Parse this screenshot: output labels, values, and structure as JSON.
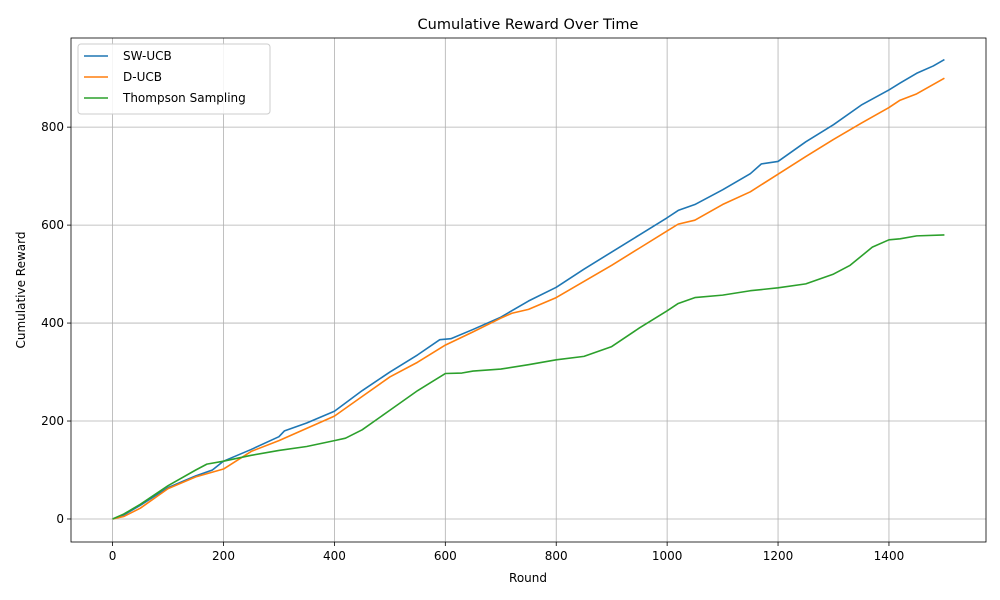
{
  "chart_data": {
    "type": "line",
    "title": "Cumulative Reward Over Time",
    "xlabel": "Round",
    "ylabel": "Cumulative Reward",
    "xlim": [
      -75,
      1575
    ],
    "ylim": [
      -47,
      982
    ],
    "xticks": [
      0,
      200,
      400,
      600,
      800,
      1000,
      1200,
      1400
    ],
    "yticks": [
      0,
      200,
      400,
      600,
      800
    ],
    "grid": true,
    "legend_position": "top-left",
    "series": [
      {
        "name": "SW-UCB",
        "color": "#1f77b4",
        "points": [
          [
            0,
            0
          ],
          [
            20,
            8
          ],
          [
            50,
            28
          ],
          [
            100,
            64
          ],
          [
            150,
            88
          ],
          [
            180,
            100
          ],
          [
            200,
            118
          ],
          [
            250,
            142
          ],
          [
            300,
            168
          ],
          [
            310,
            180
          ],
          [
            350,
            196
          ],
          [
            400,
            220
          ],
          [
            450,
            262
          ],
          [
            500,
            300
          ],
          [
            550,
            335
          ],
          [
            590,
            366
          ],
          [
            610,
            368
          ],
          [
            650,
            387
          ],
          [
            700,
            412
          ],
          [
            750,
            445
          ],
          [
            800,
            473
          ],
          [
            850,
            510
          ],
          [
            900,
            545
          ],
          [
            950,
            580
          ],
          [
            1000,
            615
          ],
          [
            1020,
            630
          ],
          [
            1050,
            642
          ],
          [
            1100,
            672
          ],
          [
            1150,
            705
          ],
          [
            1170,
            725
          ],
          [
            1200,
            730
          ],
          [
            1250,
            770
          ],
          [
            1300,
            805
          ],
          [
            1350,
            845
          ],
          [
            1400,
            876
          ],
          [
            1420,
            890
          ],
          [
            1450,
            910
          ],
          [
            1480,
            925
          ],
          [
            1500,
            938
          ]
        ]
      },
      {
        "name": "D-UCB",
        "color": "#ff7f0e",
        "points": [
          [
            0,
            0
          ],
          [
            20,
            5
          ],
          [
            50,
            22
          ],
          [
            100,
            62
          ],
          [
            150,
            86
          ],
          [
            200,
            102
          ],
          [
            250,
            138
          ],
          [
            300,
            160
          ],
          [
            350,
            185
          ],
          [
            400,
            210
          ],
          [
            450,
            250
          ],
          [
            500,
            290
          ],
          [
            550,
            320
          ],
          [
            600,
            355
          ],
          [
            650,
            382
          ],
          [
            700,
            410
          ],
          [
            720,
            420
          ],
          [
            750,
            428
          ],
          [
            800,
            452
          ],
          [
            850,
            485
          ],
          [
            900,
            518
          ],
          [
            950,
            553
          ],
          [
            1000,
            588
          ],
          [
            1020,
            602
          ],
          [
            1050,
            610
          ],
          [
            1100,
            642
          ],
          [
            1150,
            668
          ],
          [
            1200,
            704
          ],
          [
            1250,
            740
          ],
          [
            1300,
            775
          ],
          [
            1350,
            808
          ],
          [
            1400,
            840
          ],
          [
            1420,
            855
          ],
          [
            1450,
            868
          ],
          [
            1500,
            900
          ]
        ]
      },
      {
        "name": "Thompson Sampling",
        "color": "#2ca02c",
        "points": [
          [
            0,
            0
          ],
          [
            20,
            10
          ],
          [
            50,
            30
          ],
          [
            100,
            68
          ],
          [
            150,
            100
          ],
          [
            170,
            112
          ],
          [
            200,
            118
          ],
          [
            250,
            130
          ],
          [
            300,
            140
          ],
          [
            350,
            148
          ],
          [
            400,
            160
          ],
          [
            420,
            165
          ],
          [
            450,
            182
          ],
          [
            500,
            222
          ],
          [
            550,
            262
          ],
          [
            600,
            297
          ],
          [
            630,
            298
          ],
          [
            650,
            302
          ],
          [
            700,
            306
          ],
          [
            750,
            315
          ],
          [
            800,
            325
          ],
          [
            850,
            332
          ],
          [
            900,
            352
          ],
          [
            950,
            390
          ],
          [
            1000,
            425
          ],
          [
            1020,
            440
          ],
          [
            1050,
            452
          ],
          [
            1100,
            457
          ],
          [
            1150,
            466
          ],
          [
            1200,
            472
          ],
          [
            1250,
            480
          ],
          [
            1300,
            500
          ],
          [
            1330,
            518
          ],
          [
            1370,
            555
          ],
          [
            1400,
            570
          ],
          [
            1420,
            572
          ],
          [
            1450,
            578
          ],
          [
            1500,
            580
          ]
        ]
      }
    ]
  }
}
